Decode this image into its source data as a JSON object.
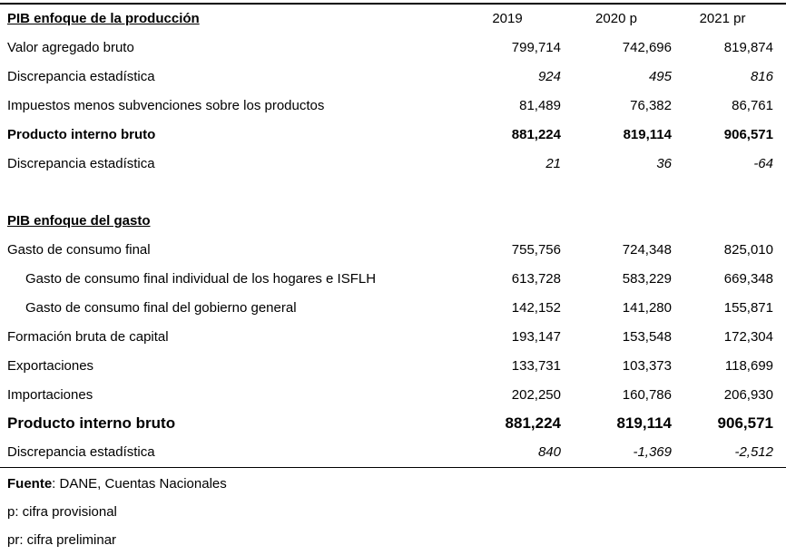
{
  "table": {
    "columns": [
      "2019",
      "2020 p",
      "2021 pr"
    ],
    "sections": [
      {
        "title": "PIB enfoque de la producción",
        "rows": [
          {
            "label": "Valor agregado bruto",
            "values": [
              "799,714",
              "742,696",
              "819,874"
            ],
            "style": "normal",
            "indent": false
          },
          {
            "label": "Discrepancia estadística",
            "values": [
              "924",
              "495",
              "816"
            ],
            "style": "italic",
            "indent": false
          },
          {
            "label": "Impuestos menos subvenciones sobre los productos",
            "values": [
              "81,489",
              "76,382",
              "86,761"
            ],
            "style": "normal",
            "indent": false
          },
          {
            "label": "Producto interno bruto",
            "values": [
              "881,224",
              "819,114",
              "906,571"
            ],
            "style": "bold",
            "indent": false
          },
          {
            "label": "Discrepancia estadística",
            "values": [
              "21",
              "36",
              "-64"
            ],
            "style": "italic",
            "indent": false
          }
        ]
      },
      {
        "title": "PIB enfoque del gasto",
        "rows": [
          {
            "label": "Gasto de consumo final",
            "values": [
              "755,756",
              "724,348",
              "825,010"
            ],
            "style": "normal",
            "indent": false
          },
          {
            "label": "Gasto de consumo final individual de los hogares e ISFLH",
            "values": [
              "613,728",
              "583,229",
              "669,348"
            ],
            "style": "normal",
            "indent": true
          },
          {
            "label": "Gasto de consumo final del gobierno general",
            "values": [
              "142,152",
              "141,280",
              "155,871"
            ],
            "style": "normal",
            "indent": true
          },
          {
            "label": "Formación bruta de capital",
            "values": [
              "193,147",
              "153,548",
              "172,304"
            ],
            "style": "normal",
            "indent": false
          },
          {
            "label": "Exportaciones",
            "values": [
              "133,731",
              "103,373",
              "118,699"
            ],
            "style": "normal",
            "indent": false
          },
          {
            "label": "Importaciones",
            "values": [
              "202,250",
              "160,786",
              "206,930"
            ],
            "style": "normal",
            "indent": false
          },
          {
            "label": "Producto interno bruto",
            "values": [
              "881,224",
              "819,114",
              "906,571"
            ],
            "style": "bold-large",
            "indent": false
          },
          {
            "label": "Discrepancia estadística",
            "values": [
              "840",
              "-1,369",
              "-2,512"
            ],
            "style": "italic",
            "indent": false
          }
        ]
      }
    ]
  },
  "footer": {
    "source_label": "Fuente",
    "source_rest": ": DANE, Cuentas Nacionales",
    "note_p": "p: cifra provisional",
    "note_pr": "pr: cifra preliminar"
  },
  "colors": {
    "text": "#000000",
    "background": "#ffffff",
    "rule": "#000000"
  }
}
